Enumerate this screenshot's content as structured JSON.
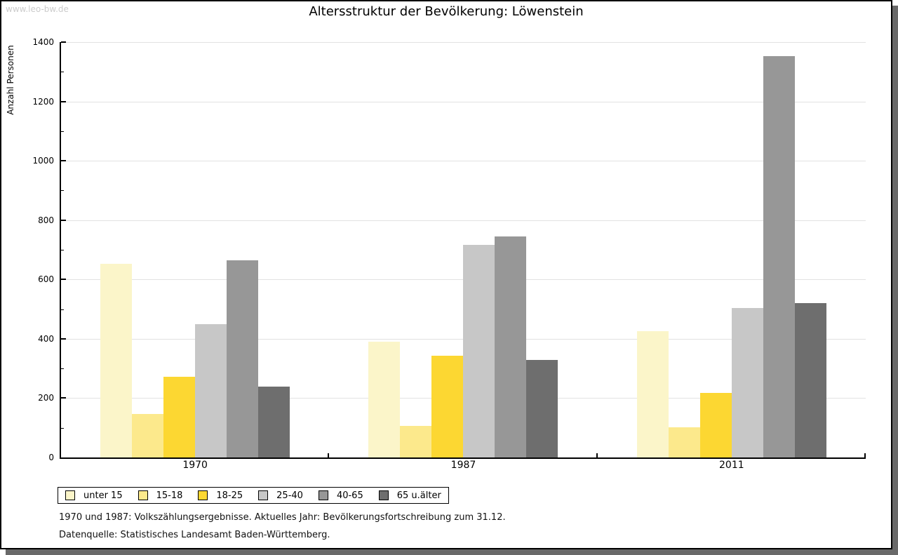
{
  "watermark": "www.leo-bw.de",
  "title": "Altersstruktur der Bevölkerung: Löwenstein",
  "chart_data": {
    "type": "bar",
    "title": "Altersstruktur der Bevölkerung: Löwenstein",
    "categories": [
      "1970",
      "1987",
      "2011"
    ],
    "series": [
      {
        "name": "unter 15",
        "color": "#FBF5C9",
        "values": [
          653,
          391,
          426
        ]
      },
      {
        "name": "15-18",
        "color": "#FCE98C",
        "values": [
          146,
          107,
          101
        ]
      },
      {
        "name": "18-25",
        "color": "#FCD732",
        "values": [
          273,
          342,
          218
        ]
      },
      {
        "name": "25-40",
        "color": "#C7C7C7",
        "values": [
          450,
          716,
          503
        ]
      },
      {
        "name": "40-65",
        "color": "#979797",
        "values": [
          665,
          746,
          1352
        ]
      },
      {
        "name": "65 u.älter",
        "color": "#6E6E6E",
        "values": [
          240,
          329,
          520
        ]
      }
    ],
    "xlabel": "",
    "ylabel": "Anzahl Personen",
    "ylim": [
      0,
      1400
    ],
    "yticks": [
      0,
      200,
      400,
      600,
      800,
      1000,
      1200,
      1400
    ],
    "minor_tick_step": 100,
    "grid": true,
    "legend_position": "bottom-left"
  },
  "footnotes": {
    "line1": "1970 und 1987: Volkszählungsergebnisse. Aktuelles Jahr: Bevölkerungsfortschreibung zum 31.12.",
    "line2": "Datenquelle: Statistisches Landesamt Baden-Württemberg."
  }
}
